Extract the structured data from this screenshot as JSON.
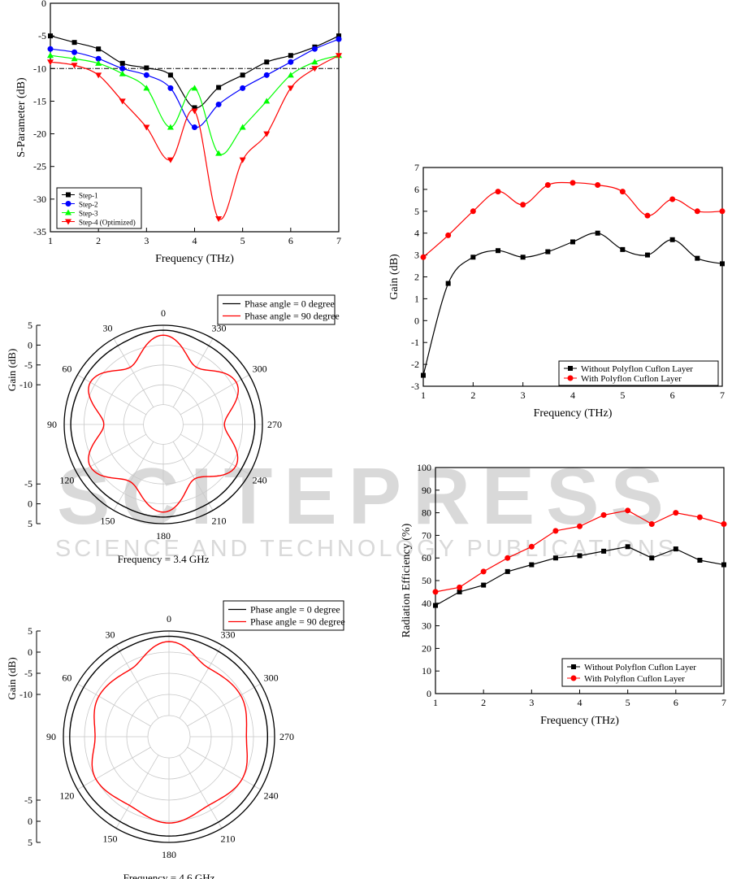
{
  "watermark": {
    "main": "SCITEPRESS",
    "sub": "SCIENCE AND TECHNOLOGY PUBLICATIONS"
  },
  "chart_data": [
    {
      "id": "sparam",
      "type": "line",
      "xlabel": "Frequency (THz)",
      "ylabel": "S-Parameter (dB)",
      "xlim": [
        1,
        7
      ],
      "ylim": [
        -35,
        0
      ],
      "xticks": [
        1,
        2,
        3,
        4,
        5,
        6,
        7
      ],
      "yticks": [
        0,
        -5,
        -10,
        -15,
        -20,
        -25,
        -30,
        -35
      ],
      "reference_line": -10,
      "legend_position": "bottom-left",
      "series": [
        {
          "name": "Step-1",
          "color": "#000000",
          "marker": "square",
          "x": [
            1,
            1.5,
            2,
            2.5,
            3,
            3.5,
            4,
            4.5,
            5,
            5.5,
            6,
            6.5,
            7
          ],
          "y": [
            -5,
            -6,
            -7,
            -9.2,
            -9.9,
            -11,
            -16,
            -12.9,
            -11,
            -9,
            -8,
            -6.7,
            -5
          ]
        },
        {
          "name": "Step-2",
          "color": "#0000ff",
          "marker": "circle",
          "x": [
            1,
            1.5,
            2,
            2.5,
            3,
            3.5,
            4,
            4.5,
            5,
            5.5,
            6,
            6.5,
            7
          ],
          "y": [
            -7,
            -7.5,
            -8.5,
            -10,
            -11,
            -13,
            -19,
            -15.5,
            -13,
            -11,
            -9,
            -7,
            -5.5
          ]
        },
        {
          "name": "Step-3",
          "color": "#00ff00",
          "marker": "triangle-up",
          "x": [
            1,
            1.5,
            2,
            2.5,
            3,
            3.5,
            4,
            4.5,
            5,
            5.5,
            6,
            6.5,
            7
          ],
          "y": [
            -8,
            -8.5,
            -9.2,
            -10.8,
            -13,
            -19,
            -13,
            -23,
            -19,
            -15,
            -11,
            -9,
            -8
          ]
        },
        {
          "name": "Step-4 (Optimized)",
          "color": "#ff0000",
          "marker": "triangle-down",
          "x": [
            1,
            1.5,
            2,
            2.5,
            3,
            3.5,
            4,
            4.5,
            5,
            5.5,
            6,
            6.5,
            7
          ],
          "y": [
            -9,
            -9.5,
            -11,
            -15,
            -19,
            -24,
            -16.5,
            -33,
            -24,
            -20,
            -13,
            -10,
            -8
          ]
        }
      ]
    },
    {
      "id": "gain",
      "type": "line",
      "xlabel": "Frequency (THz)",
      "ylabel": "Gain (dB)",
      "xlim": [
        1,
        7
      ],
      "ylim": [
        -3,
        7
      ],
      "xticks": [
        1,
        2,
        3,
        4,
        5,
        6,
        7
      ],
      "yticks": [
        -3,
        -2,
        -1,
        0,
        1,
        2,
        3,
        4,
        5,
        6,
        7
      ],
      "legend_position": "bottom-right",
      "series": [
        {
          "name": "Without Polyflon Cuflon Layer",
          "color": "#000000",
          "marker": "square",
          "x": [
            1,
            1.5,
            2,
            2.5,
            3,
            3.5,
            4,
            4.5,
            5,
            5.5,
            6,
            6.5,
            7
          ],
          "y": [
            -2.5,
            1.7,
            2.9,
            3.2,
            2.9,
            3.15,
            3.6,
            4.0,
            3.25,
            3.0,
            3.7,
            2.85,
            2.6
          ]
        },
        {
          "name": "With Polyflon Cuflon Layer",
          "color": "#ff0000",
          "marker": "circle",
          "x": [
            1,
            1.5,
            2,
            2.5,
            3,
            3.5,
            4,
            4.5,
            5,
            5.5,
            6,
            6.5,
            7
          ],
          "y": [
            2.9,
            3.9,
            5.0,
            5.9,
            5.3,
            6.2,
            6.3,
            6.2,
            5.9,
            4.8,
            5.55,
            5.0,
            5.0
          ]
        }
      ]
    },
    {
      "id": "efficiency",
      "type": "line",
      "xlabel": "Frequency (THz)",
      "ylabel": "Radiation Efficiency (%)",
      "xlim": [
        1,
        7
      ],
      "ylim": [
        0,
        100
      ],
      "xticks": [
        1,
        2,
        3,
        4,
        5,
        6,
        7
      ],
      "yticks": [
        0,
        10,
        20,
        30,
        40,
        50,
        60,
        70,
        80,
        90,
        100
      ],
      "legend_position": "bottom-right",
      "series": [
        {
          "name": "Without Polyflon Cuflon Layer",
          "color": "#000000",
          "marker": "square",
          "x": [
            1,
            1.5,
            2,
            2.5,
            3,
            3.5,
            4,
            4.5,
            5,
            5.5,
            6,
            6.5,
            7
          ],
          "y": [
            39,
            45,
            48,
            54,
            57,
            60,
            61,
            63,
            65,
            60,
            64,
            59,
            57
          ]
        },
        {
          "name": "With Polyflon Cuflon Layer",
          "color": "#ff0000",
          "marker": "circle",
          "x": [
            1,
            1.5,
            2,
            2.5,
            3,
            3.5,
            4,
            4.5,
            5,
            5.5,
            6,
            6.5,
            7
          ],
          "y": [
            45,
            47,
            54,
            60,
            65,
            72,
            74,
            79,
            81,
            75,
            80,
            78,
            75
          ]
        }
      ]
    },
    {
      "id": "polar34",
      "type": "polar",
      "caption": "Frequency = 3.4 GHz",
      "ylabel": "Gain (dB)",
      "angle_labels": [
        "0",
        "30",
        "60",
        "90",
        "120",
        "150",
        "180",
        "210",
        "240",
        "270",
        "300",
        "330"
      ],
      "radial_labels_top": [
        "5",
        "0",
        "-5",
        "-10"
      ],
      "radial_labels_bottom": [
        "-5",
        "0",
        "5"
      ],
      "rlim": [
        -25,
        5
      ],
      "legend_position": "top-right",
      "series": [
        {
          "name": "Phase angle = 0 degree",
          "color": "#000000",
          "angle_deg": [
            0,
            30,
            60,
            90,
            120,
            150,
            180,
            210,
            240,
            270,
            300,
            330
          ],
          "gain_db": [
            3.5,
            2.5,
            2.6,
            3.0,
            2.5,
            2.5,
            3.0,
            2.5,
            2.2,
            2.7,
            2.3,
            2.5
          ]
        },
        {
          "name": "Phase angle = 90 degree",
          "color": "#ff0000",
          "angle_deg": [
            0,
            30,
            60,
            90,
            120,
            150,
            180,
            210,
            240,
            270,
            300,
            330
          ],
          "gain_db": [
            2.0,
            -5.0,
            0.5,
            -7.0,
            0.5,
            -5.0,
            1.5,
            -6.0,
            0.3,
            -6.5,
            0.5,
            -5.0
          ]
        }
      ]
    },
    {
      "id": "polar46",
      "type": "polar",
      "caption": "Frequency = 4.6 GHz",
      "ylabel": "Gain (dB)",
      "angle_labels": [
        "0",
        "30",
        "60",
        "90",
        "120",
        "150",
        "180",
        "210",
        "240",
        "270",
        "300",
        "330"
      ],
      "radial_labels_top": [
        "5",
        "0",
        "-5",
        "-10"
      ],
      "radial_labels_bottom": [
        "-5",
        "0",
        "5"
      ],
      "rlim": [
        -25,
        5
      ],
      "legend_position": "top-right",
      "series": [
        {
          "name": "Phase angle = 0 degree",
          "color": "#000000",
          "angle_deg": [
            0,
            30,
            60,
            90,
            120,
            150,
            180,
            210,
            240,
            270,
            300,
            330
          ],
          "gain_db": [
            3.5,
            3.0,
            3.0,
            3.2,
            3.0,
            2.8,
            3.2,
            3.0,
            2.9,
            3.0,
            3.0,
            3.0
          ]
        },
        {
          "name": "Phase angle = 90 degree",
          "color": "#ff0000",
          "angle_deg": [
            0,
            30,
            60,
            90,
            120,
            150,
            180,
            210,
            240,
            270,
            300,
            330
          ],
          "gain_db": [
            2.0,
            -3.0,
            -2.0,
            -4.0,
            -1.0,
            -2.5,
            -0.5,
            -2.5,
            -1.0,
            -3.0,
            -1.5,
            -2.5
          ]
        }
      ]
    }
  ]
}
